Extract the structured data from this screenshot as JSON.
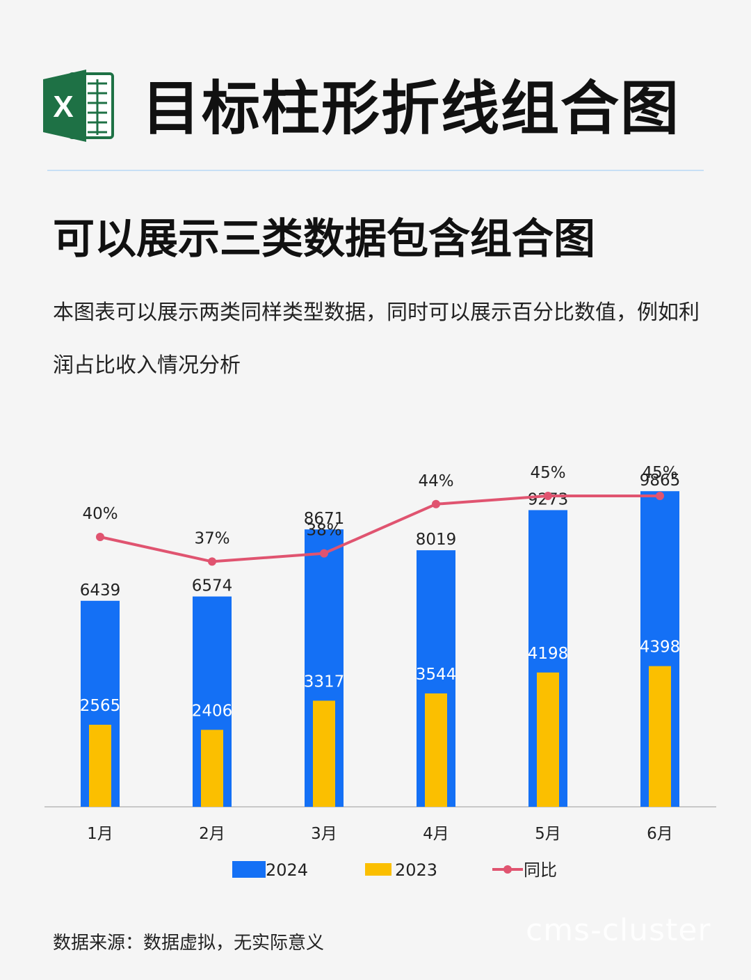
{
  "header": {
    "title": "目标柱形折线组合图",
    "logo_icon": "excel-icon",
    "logo_letter": "X"
  },
  "subtitle": "可以展示三类数据包含组合图",
  "description": "本图表可以展示两类同样类型数据，同时可以展示百分比数值，例如利润占比收入情况分析",
  "source_note": "数据来源：数据虚拟，无实际意义",
  "watermark": "cms-cluster",
  "colors": {
    "series_2024": "#1470f5",
    "series_2023": "#fbbf00",
    "yoy_line": "#e05470",
    "excel_green": "#1e7145"
  },
  "chart_data": {
    "type": "bar",
    "categories": [
      "1月",
      "2月",
      "3月",
      "4月",
      "5月",
      "6月"
    ],
    "series": [
      {
        "name": "2024",
        "type": "bar",
        "values": [
          6439,
          6574,
          8671,
          8019,
          9273,
          9865
        ]
      },
      {
        "name": "2023",
        "type": "bar",
        "values": [
          2565,
          2406,
          3317,
          3544,
          4198,
          4398
        ]
      },
      {
        "name": "同比",
        "type": "line",
        "values": [
          40,
          37,
          38,
          44,
          45,
          45
        ],
        "labels": [
          "40%",
          "37%",
          "38%",
          "44%",
          "45%",
          "45%"
        ]
      }
    ],
    "title": "",
    "xlabel": "",
    "ylabel": "",
    "ylim": [
      0,
      10000
    ],
    "grid": false,
    "legend_position": "bottom-center",
    "legend": [
      "2024",
      "2023",
      "同比"
    ]
  }
}
